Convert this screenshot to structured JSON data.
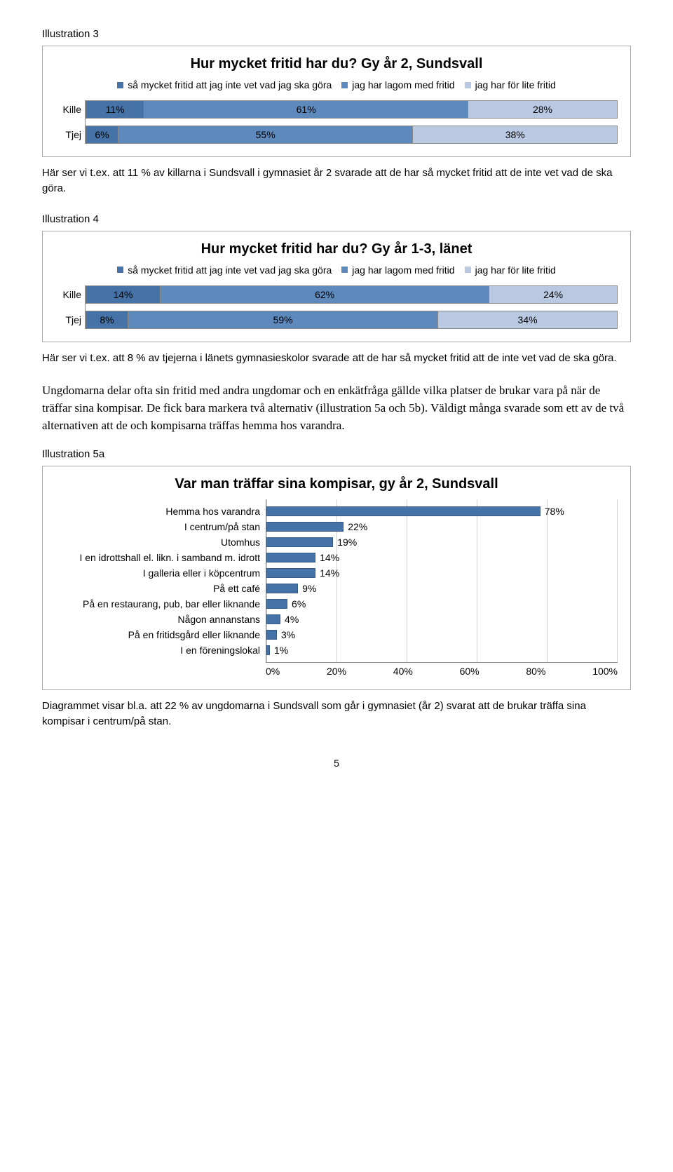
{
  "colors": {
    "series_dark": "#4573a7",
    "series_mid": "#5d89bd",
    "series_light": "#b9c9e2",
    "bar_fill": "#4573a7",
    "grid": "#d0d0d0",
    "axis": "#888888"
  },
  "ill3": {
    "label": "Illustration 3",
    "title": "Hur mycket fritid har du? Gy år 2, Sundsvall",
    "legend": [
      "så mycket fritid att jag inte vet vad jag ska göra",
      "jag har lagom med fritid",
      "jag har för lite fritid"
    ],
    "rows": [
      {
        "label": "Kille",
        "values": [
          11,
          61,
          28
        ]
      },
      {
        "label": "Tjej",
        "values": [
          6,
          55,
          38
        ]
      }
    ]
  },
  "text3": "Här ser vi t.ex. att 11 % av killarna i Sundsvall i gymnasiet år 2 svarade att de har så mycket fritid att de inte vet vad de ska göra.",
  "ill4": {
    "label": "Illustration 4",
    "title": "Hur mycket fritid har du? Gy år 1-3, länet",
    "legend": [
      "så mycket fritid att jag inte vet vad jag ska göra",
      "jag har lagom med fritid",
      "jag har för lite fritid"
    ],
    "rows": [
      {
        "label": "Kille",
        "values": [
          14,
          62,
          24
        ]
      },
      {
        "label": "Tjej",
        "values": [
          8,
          59,
          34
        ]
      }
    ]
  },
  "text4": "Här ser vi t.ex. att 8 % av tjejerna i länets gymnasieskolor svarade att de har så mycket fritid att de inte vet vad de ska göra.",
  "body_para": "Ungdomarna delar ofta sin fritid med andra ungdomar och en enkätfråga gällde vilka platser de brukar vara på när de träffar sina kompisar. De fick bara markera två alternativ (illustration 5a och 5b). Väldigt många svarade som ett av de två alternativen att de och kompisarna träffas hemma hos varandra.",
  "ill5a": {
    "label": "Illustration 5a",
    "title": "Var man träffar sina kompisar, gy år 2, Sundsvall",
    "xmax": 100,
    "xtick_step": 20,
    "xticks": [
      "0%",
      "20%",
      "40%",
      "60%",
      "80%",
      "100%"
    ],
    "rows": [
      {
        "label": "Hemma hos varandra",
        "value": 78
      },
      {
        "label": "I centrum/på stan",
        "value": 22
      },
      {
        "label": "Utomhus",
        "value": 19
      },
      {
        "label": "I en idrottshall el. likn. i samband m. idrott",
        "value": 14
      },
      {
        "label": "I galleria eller i köpcentrum",
        "value": 14
      },
      {
        "label": "På ett café",
        "value": 9
      },
      {
        "label": "På en restaurang, pub, bar eller liknande",
        "value": 6
      },
      {
        "label": "Någon annanstans",
        "value": 4
      },
      {
        "label": "På en fritidsgård eller liknande",
        "value": 3
      },
      {
        "label": "I en föreningslokal",
        "value": 1
      }
    ]
  },
  "text5a": "Diagrammet visar bl.a. att 22 % av ungdomarna i Sundsvall som går i gymnasiet (år 2) svarat att de brukar träffa sina kompisar i centrum/på stan.",
  "page_number": "5"
}
